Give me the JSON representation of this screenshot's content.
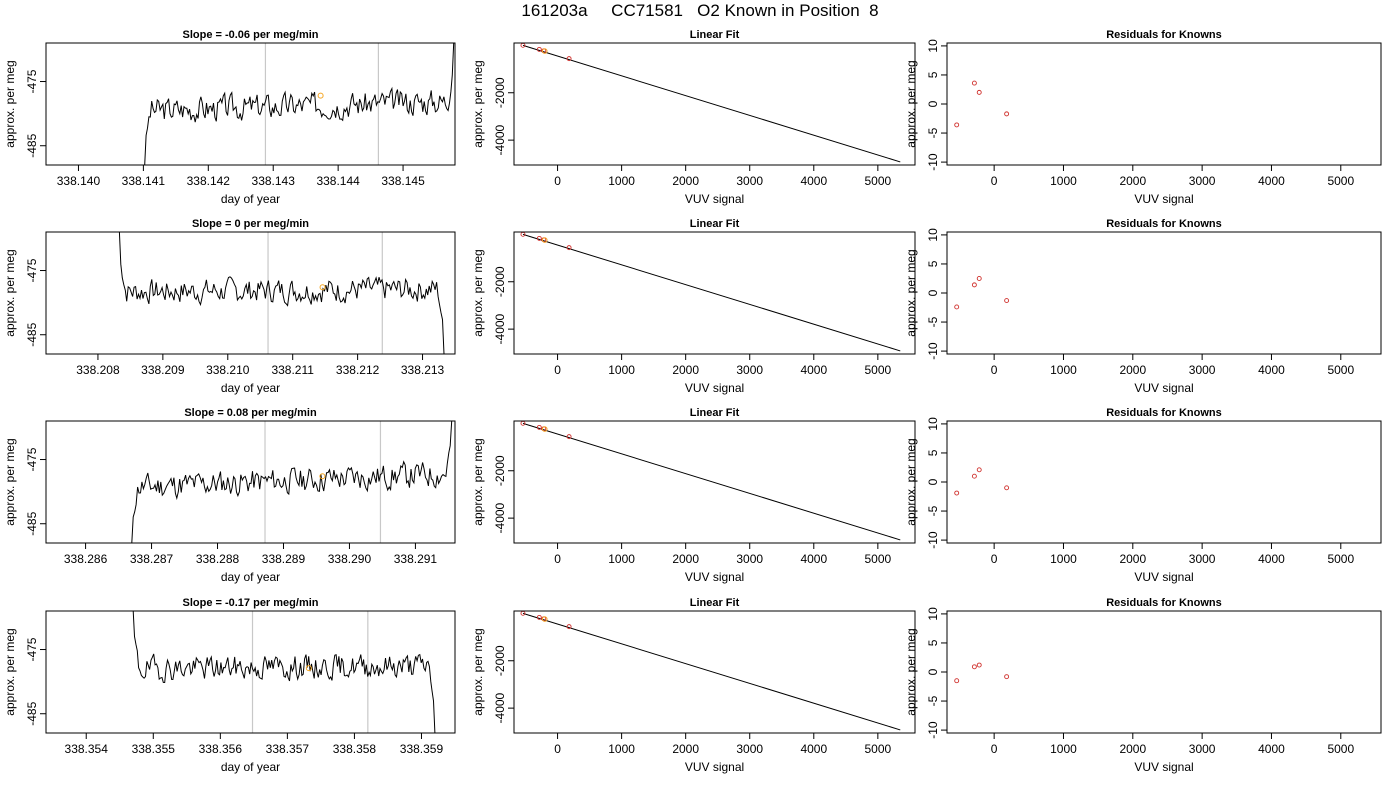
{
  "page_title": "161203a     CC71581   O2 Known in Position  8",
  "chart_data": [
    {
      "type": "line",
      "row": 1,
      "panel": "time",
      "title": "Slope =  -0.06  per meg/min",
      "xlabel": "day of year",
      "ylabel": "approx. per meg",
      "xlim": [
        338.1395,
        338.1458
      ],
      "ylim": [
        -488,
        -469
      ],
      "xticks": [
        "338.140",
        "338.141",
        "338.142",
        "338.143",
        "338.144",
        "338.145"
      ],
      "yticks": [
        "-485",
        "-475"
      ],
      "vlines": [
        338.14288,
        338.14462
      ],
      "marker": {
        "x": 338.14373,
        "y": -477.2
      },
      "trace": {
        "x0": 338.14102,
        "x1": 338.14578,
        "y_start": -488,
        "y_end": -469,
        "level_start": -479.5,
        "level_end": -478.0,
        "noise": 1.8,
        "seed": 3
      }
    },
    {
      "type": "line",
      "row": 1,
      "panel": "fit",
      "title": "Linear Fit",
      "xlabel": "VUV signal",
      "ylabel": "approx. per meg",
      "xlim": [
        -680,
        5580
      ],
      "ylim": [
        -5050,
        100
      ],
      "xticks": [
        "0",
        "1000",
        "2000",
        "3000",
        "4000",
        "5000"
      ],
      "yticks": [
        "-2000",
        "-4000"
      ],
      "line": {
        "x": [
          -540,
          5350
        ],
        "y": [
          0,
          -4920
        ]
      },
      "points": {
        "x": [
          -540,
          -285,
          -215,
          180
        ],
        "y": [
          2,
          -170,
          -230,
          -560
        ]
      },
      "highlight": {
        "x": -200,
        "y": -240
      }
    },
    {
      "type": "scatter",
      "row": 1,
      "panel": "residuals",
      "title": "Residuals for Knowns",
      "xlabel": "VUV signal",
      "ylabel": "approx. per meg",
      "xlim": [
        -680,
        5580
      ],
      "ylim": [
        -10.5,
        10.5
      ],
      "xticks": [
        "0",
        "1000",
        "2000",
        "3000",
        "4000",
        "5000"
      ],
      "yticks": [
        "-10",
        "-5",
        "0",
        "5",
        "10"
      ],
      "x": [
        -540,
        -285,
        -215,
        180
      ],
      "y": [
        -3.6,
        3.6,
        2.0,
        -1.7
      ]
    },
    {
      "type": "line",
      "row": 2,
      "panel": "time",
      "title": "Slope =  0  per meg/min",
      "xlabel": "day of year",
      "ylabel": "approx. per meg",
      "xlim": [
        338.2072,
        338.2135
      ],
      "ylim": [
        -488,
        -469
      ],
      "xticks": [
        "338.208",
        "338.209",
        "338.210",
        "338.211",
        "338.212",
        "338.213"
      ],
      "yticks": [
        "-485",
        "-475"
      ],
      "vlines": [
        338.21062,
        338.21238
      ],
      "marker": {
        "x": 338.21146,
        "y": -477.6
      },
      "trace": {
        "x0": 338.20833,
        "x1": 338.21333,
        "y_start": -469,
        "y_end": -488,
        "level_start": -478.3,
        "level_end": -477.9,
        "noise": 1.7,
        "seed": 7
      }
    },
    {
      "type": "line",
      "row": 2,
      "panel": "fit",
      "title": "Linear Fit",
      "xlabel": "VUV signal",
      "ylabel": "approx. per meg",
      "xlim": [
        -680,
        5580
      ],
      "ylim": [
        -5050,
        100
      ],
      "xticks": [
        "0",
        "1000",
        "2000",
        "3000",
        "4000",
        "5000"
      ],
      "yticks": [
        "-2000",
        "-4000"
      ],
      "line": {
        "x": [
          -540,
          5350
        ],
        "y": [
          0,
          -4920
        ]
      },
      "points": {
        "x": [
          -540,
          -285,
          -215,
          180
        ],
        "y": [
          2,
          -170,
          -230,
          -560
        ]
      },
      "highlight": {
        "x": -200,
        "y": -240
      }
    },
    {
      "type": "scatter",
      "row": 2,
      "panel": "residuals",
      "title": "Residuals for Knowns",
      "xlabel": "VUV signal",
      "ylabel": "approx. per meg",
      "xlim": [
        -680,
        5580
      ],
      "ylim": [
        -10.5,
        10.5
      ],
      "xticks": [
        "0",
        "1000",
        "2000",
        "3000",
        "4000",
        "5000"
      ],
      "yticks": [
        "-10",
        "-5",
        "0",
        "5",
        "10"
      ],
      "x": [
        -540,
        -285,
        -215,
        180
      ],
      "y": [
        -2.4,
        1.4,
        2.5,
        -1.3
      ]
    },
    {
      "type": "line",
      "row": 3,
      "panel": "time",
      "title": "Slope =  0.08  per meg/min",
      "xlabel": "day of year",
      "ylabel": "approx. per meg",
      "xlim": [
        338.2854,
        338.2916
      ],
      "ylim": [
        -488,
        -469
      ],
      "xticks": [
        "338.286",
        "338.287",
        "338.288",
        "338.289",
        "338.290",
        "338.291"
      ],
      "yticks": [
        "-485",
        "-475"
      ],
      "vlines": [
        338.28872,
        338.29047
      ],
      "marker": {
        "x": 338.28959,
        "y": -477.6
      },
      "trace": {
        "x0": 338.2867,
        "x1": 338.29155,
        "y_start": -488,
        "y_end": -469,
        "level_start": -479.3,
        "level_end": -477.2,
        "noise": 1.8,
        "seed": 11
      }
    },
    {
      "type": "line",
      "row": 3,
      "panel": "fit",
      "title": "Linear Fit",
      "xlabel": "VUV signal",
      "ylabel": "approx. per meg",
      "xlim": [
        -680,
        5580
      ],
      "ylim": [
        -5050,
        100
      ],
      "xticks": [
        "0",
        "1000",
        "2000",
        "3000",
        "4000",
        "5000"
      ],
      "yticks": [
        "-2000",
        "-4000"
      ],
      "line": {
        "x": [
          -540,
          5350
        ],
        "y": [
          0,
          -4920
        ]
      },
      "points": {
        "x": [
          -540,
          -285,
          -215,
          180
        ],
        "y": [
          2,
          -170,
          -230,
          -560
        ]
      },
      "highlight": {
        "x": -200,
        "y": -240
      }
    },
    {
      "type": "scatter",
      "row": 3,
      "panel": "residuals",
      "title": "Residuals for Knowns",
      "xlabel": "VUV signal",
      "ylabel": "approx. per meg",
      "xlim": [
        -680,
        5580
      ],
      "ylim": [
        -10.5,
        10.5
      ],
      "xticks": [
        "0",
        "1000",
        "2000",
        "3000",
        "4000",
        "5000"
      ],
      "yticks": [
        "-10",
        "-5",
        "0",
        "5",
        "10"
      ],
      "x": [
        -540,
        -285,
        -215,
        180
      ],
      "y": [
        -1.9,
        1.0,
        2.1,
        -1.0
      ]
    },
    {
      "type": "line",
      "row": 4,
      "panel": "time",
      "title": "Slope =  -0.17  per meg/min",
      "xlabel": "day of year",
      "ylabel": "approx. per meg",
      "xlim": [
        338.3534,
        338.3595
      ],
      "ylim": [
        -488,
        -469
      ],
      "xticks": [
        "338.354",
        "338.355",
        "338.356",
        "338.357",
        "338.358",
        "338.359"
      ],
      "yticks": [
        "-485",
        "-475"
      ],
      "vlines": [
        338.35648,
        338.3582
      ],
      "marker": {
        "x": 338.35732,
        "y": -477.9
      },
      "trace": {
        "x0": 338.3547,
        "x1": 338.3592,
        "y_start": -469,
        "y_end": -488,
        "level_start": -478.0,
        "level_end": -477.5,
        "noise": 1.7,
        "seed": 19
      }
    },
    {
      "type": "line",
      "row": 4,
      "panel": "fit",
      "title": "Linear Fit",
      "xlabel": "VUV signal",
      "ylabel": "approx. per meg",
      "xlim": [
        -680,
        5580
      ],
      "ylim": [
        -5050,
        100
      ],
      "xticks": [
        "0",
        "1000",
        "2000",
        "3000",
        "4000",
        "5000"
      ],
      "yticks": [
        "-2000",
        "-4000"
      ],
      "line": {
        "x": [
          -540,
          5350
        ],
        "y": [
          0,
          -4920
        ]
      },
      "points": {
        "x": [
          -540,
          -285,
          -215,
          180
        ],
        "y": [
          2,
          -170,
          -230,
          -560
        ]
      },
      "highlight": {
        "x": -200,
        "y": -240
      }
    },
    {
      "type": "scatter",
      "row": 4,
      "panel": "residuals",
      "title": "Residuals for Knowns",
      "xlabel": "VUV signal",
      "ylabel": "approx. per meg",
      "xlim": [
        -680,
        5580
      ],
      "ylim": [
        -10.5,
        10.5
      ],
      "xticks": [
        "0",
        "1000",
        "2000",
        "3000",
        "4000",
        "5000"
      ],
      "yticks": [
        "-10",
        "-5",
        "0",
        "5",
        "10"
      ],
      "x": [
        -540,
        -285,
        -215,
        180
      ],
      "y": [
        -1.5,
        0.9,
        1.2,
        -0.8
      ]
    }
  ],
  "colors": {
    "axis": "#000000",
    "trace": "#000000",
    "vline": "#c8c8c8",
    "highlight": "#f5a623",
    "residual_point": "#d0312d",
    "fit_point": "#d0312d"
  }
}
